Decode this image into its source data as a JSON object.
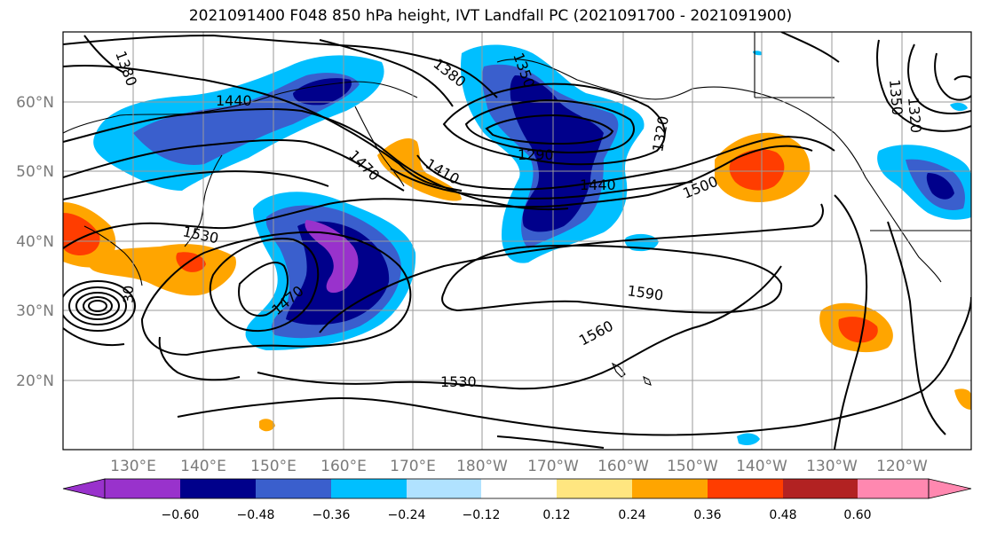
{
  "title": "2021091400 F048 850 hPa height, IVT Landfall PC (2021091700 - 2021091900)",
  "map": {
    "lat_labels": [
      "60°N",
      "50°N",
      "40°N",
      "30°N",
      "20°N"
    ],
    "lon_labels": [
      "130°E",
      "140°E",
      "150°E",
      "160°E",
      "170°E",
      "180°W",
      "170°W",
      "160°W",
      "150°W",
      "140°W",
      "130°W",
      "120°W"
    ],
    "contour_labels": [
      "1380",
      "1440",
      "1380",
      "1350",
      "1320",
      "1350",
      "1320",
      "1290",
      "1410",
      "1470",
      "1440",
      "1500",
      "1530",
      "1470",
      "1590",
      "1560",
      "1530",
      "30"
    ]
  },
  "colorbar": {
    "tick_labels": [
      "−0.60",
      "−0.48",
      "−0.36",
      "−0.24",
      "−0.12",
      "0.12",
      "0.24",
      "0.36",
      "0.48",
      "0.60"
    ],
    "colors": [
      "#9932cc",
      "#00008b",
      "#3a5fcd",
      "#00bfff",
      "#b0e2ff",
      "#ffffff",
      "#ffe680",
      "#ffa500",
      "#ff3d00",
      "#b22222",
      "#ff88b0"
    ]
  }
}
